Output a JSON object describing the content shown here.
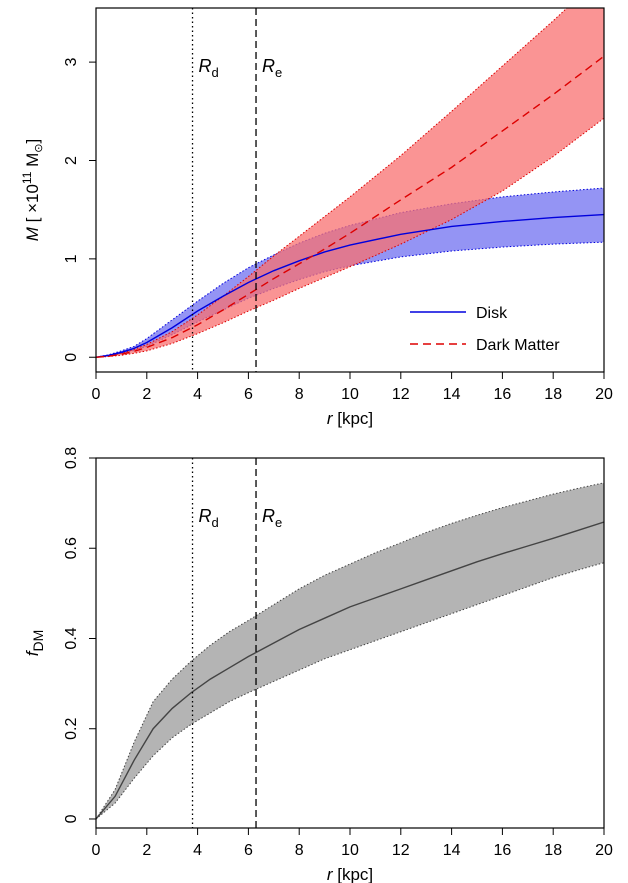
{
  "chart_data": [
    {
      "type": "area",
      "title": "",
      "xlabel": {
        "var": "r",
        "unit": " [kpc]"
      },
      "ylabel": {
        "var": "M",
        "unit_prefix": " [ ×10",
        "unit_exp": "11",
        "unit_suffix": " M",
        "unit_sub": "⊙",
        "unit_close": "]"
      },
      "xlim": [
        0,
        20
      ],
      "ylim": [
        -0.15,
        3.55
      ],
      "xticks": [
        0,
        2,
        4,
        6,
        8,
        10,
        12,
        14,
        16,
        18,
        20
      ],
      "yticks": [
        0,
        1,
        2,
        3
      ],
      "grid": false,
      "legend_position": "bottom-right",
      "vlines": [
        {
          "x": 3.8,
          "style": "dotted",
          "label_main": "R",
          "label_sub": "d"
        },
        {
          "x": 6.3,
          "style": "dashed",
          "label_main": "R",
          "label_sub": "e"
        }
      ],
      "series": [
        {
          "name": "Disk",
          "color": "#0000dd",
          "band_color": "#7070f0",
          "line": "solid",
          "x": [
            0,
            0.5,
            1,
            1.5,
            2,
            3,
            4,
            5,
            6,
            7,
            8,
            9,
            10,
            12,
            14,
            16,
            18,
            20
          ],
          "y": [
            0,
            0.02,
            0.05,
            0.09,
            0.15,
            0.3,
            0.47,
            0.62,
            0.76,
            0.88,
            0.98,
            1.07,
            1.14,
            1.25,
            1.33,
            1.38,
            1.42,
            1.45
          ],
          "y_low": [
            0,
            0.015,
            0.04,
            0.07,
            0.11,
            0.23,
            0.36,
            0.48,
            0.6,
            0.7,
            0.79,
            0.87,
            0.93,
            1.02,
            1.08,
            1.12,
            1.15,
            1.17
          ],
          "y_high": [
            0,
            0.025,
            0.065,
            0.11,
            0.19,
            0.38,
            0.57,
            0.75,
            0.91,
            1.04,
            1.16,
            1.26,
            1.34,
            1.47,
            1.56,
            1.63,
            1.68,
            1.72
          ]
        },
        {
          "name": "Dark Matter",
          "color": "#dd0000",
          "band_color": "#f87070",
          "line": "dashed",
          "x": [
            0,
            0.5,
            1,
            1.5,
            2,
            3,
            4,
            5,
            6,
            7,
            8,
            9,
            10,
            12,
            14,
            16,
            18,
            20
          ],
          "y": [
            0,
            0.01,
            0.03,
            0.06,
            0.1,
            0.2,
            0.33,
            0.48,
            0.64,
            0.8,
            0.95,
            1.1,
            1.26,
            1.6,
            1.93,
            2.3,
            2.67,
            3.06
          ],
          "y_low": [
            0,
            0.007,
            0.02,
            0.04,
            0.065,
            0.14,
            0.24,
            0.35,
            0.47,
            0.58,
            0.7,
            0.81,
            0.92,
            1.15,
            1.4,
            1.69,
            2.04,
            2.43
          ],
          "y_high": [
            0,
            0.013,
            0.04,
            0.08,
            0.13,
            0.26,
            0.43,
            0.62,
            0.82,
            1.03,
            1.23,
            1.43,
            1.63,
            2.05,
            2.5,
            2.96,
            3.42,
            3.9
          ]
        }
      ]
    },
    {
      "type": "area",
      "title": "",
      "xlabel": {
        "var": "r",
        "unit": " [kpc]"
      },
      "ylabel": {
        "var": "f",
        "sub": "DM"
      },
      "xlim": [
        0,
        20
      ],
      "ylim": [
        -0.02,
        0.8
      ],
      "xticks": [
        0,
        2,
        4,
        6,
        8,
        10,
        12,
        14,
        16,
        18,
        20
      ],
      "yticks": [
        0,
        0.2,
        0.4,
        0.6,
        0.8
      ],
      "grid": false,
      "vlines": [
        {
          "x": 3.8,
          "style": "dotted",
          "label_main": "R",
          "label_sub": "d"
        },
        {
          "x": 6.3,
          "style": "dashed",
          "label_main": "R",
          "label_sub": "e"
        }
      ],
      "series": [
        {
          "color": "#444444",
          "band_color": "#b4b4b4",
          "line": "solid",
          "x": [
            0,
            0.75,
            1.5,
            2.25,
            3,
            3.75,
            4.5,
            5.25,
            6,
            7,
            8,
            9,
            10,
            11,
            12,
            13,
            14,
            15,
            16,
            17,
            18,
            19,
            20
          ],
          "y": [
            0,
            0.05,
            0.13,
            0.2,
            0.245,
            0.28,
            0.31,
            0.335,
            0.36,
            0.39,
            0.42,
            0.445,
            0.47,
            0.49,
            0.51,
            0.53,
            0.55,
            0.57,
            0.588,
            0.605,
            0.622,
            0.64,
            0.658
          ],
          "y_low": [
            0,
            0.035,
            0.09,
            0.14,
            0.18,
            0.21,
            0.235,
            0.26,
            0.28,
            0.305,
            0.33,
            0.355,
            0.375,
            0.395,
            0.415,
            0.435,
            0.455,
            0.475,
            0.495,
            0.515,
            0.535,
            0.552,
            0.568
          ],
          "y_high": [
            0,
            0.065,
            0.17,
            0.26,
            0.31,
            0.35,
            0.385,
            0.415,
            0.44,
            0.475,
            0.51,
            0.54,
            0.565,
            0.59,
            0.612,
            0.635,
            0.655,
            0.673,
            0.69,
            0.705,
            0.72,
            0.733,
            0.745
          ]
        }
      ]
    }
  ]
}
